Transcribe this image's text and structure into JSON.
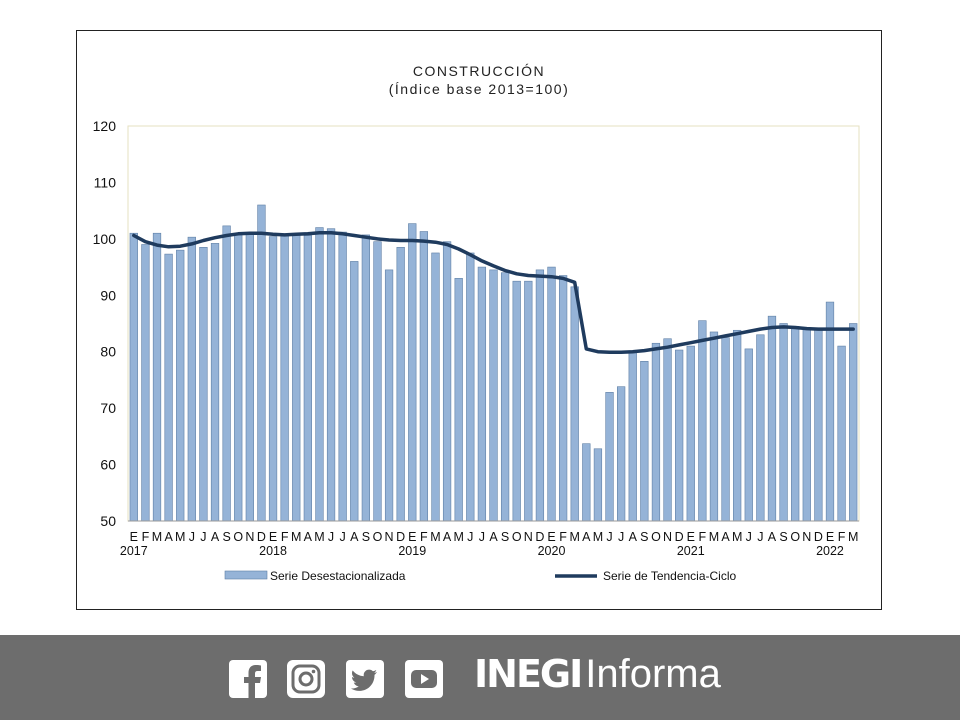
{
  "chart_data": {
    "type": "bar",
    "title": "CONSTRUCCIÓN",
    "subtitle": "(Índice base 2013=100)",
    "ylim": [
      50,
      120
    ],
    "yticks": [
      50,
      60,
      70,
      80,
      90,
      100,
      110,
      120
    ],
    "month_labels": [
      "E",
      "F",
      "M",
      "A",
      "M",
      "J",
      "J",
      "A",
      "S",
      "O",
      "N",
      "D",
      "E",
      "F",
      "M",
      "A",
      "M",
      "J",
      "J",
      "A",
      "S",
      "O",
      "N",
      "D",
      "E",
      "F",
      "M",
      "A",
      "M",
      "J",
      "J",
      "A",
      "S",
      "O",
      "N",
      "D",
      "E",
      "F",
      "M",
      "A",
      "M",
      "J",
      "J",
      "A",
      "S",
      "O",
      "N",
      "D",
      "E",
      "F",
      "M",
      "A",
      "M",
      "J",
      "J",
      "A",
      "S",
      "O",
      "N",
      "D",
      "E",
      "F",
      "M"
    ],
    "year_labels": [
      {
        "index": 0,
        "label": "2017"
      },
      {
        "index": 12,
        "label": "2018"
      },
      {
        "index": 24,
        "label": "2019"
      },
      {
        "index": 36,
        "label": "2020"
      },
      {
        "index": 48,
        "label": "2021"
      },
      {
        "index": 60,
        "label": "2022"
      }
    ],
    "series": [
      {
        "name": "Serie Desestacionalizada",
        "kind": "bar",
        "values": [
          101.0,
          99.0,
          101.0,
          97.3,
          98.0,
          100.3,
          98.5,
          99.2,
          102.3,
          100.8,
          100.8,
          106.0,
          100.4,
          100.5,
          100.8,
          100.6,
          102.0,
          101.8,
          101.2,
          96.0,
          100.7,
          99.5,
          94.5,
          98.5,
          102.7,
          101.3,
          97.5,
          99.5,
          93.0,
          97.5,
          95.0,
          94.5,
          94.0,
          92.5,
          92.5,
          94.5,
          95.0,
          93.5,
          91.5,
          63.7,
          62.8,
          72.8,
          73.8,
          79.8,
          78.3,
          81.5,
          82.3,
          80.3,
          81.0,
          85.5,
          83.5,
          82.5,
          83.8,
          80.5,
          83.0,
          86.3,
          85.0,
          84.5,
          84.0,
          84.0,
          88.8,
          81.0,
          85.0
        ]
      },
      {
        "name": "Serie de Tendencia-Ciclo",
        "kind": "line",
        "values": [
          100.6,
          99.5,
          98.9,
          98.6,
          98.7,
          99.1,
          99.7,
          100.2,
          100.6,
          100.9,
          101.0,
          101.0,
          100.8,
          100.7,
          100.8,
          100.9,
          101.1,
          101.1,
          100.9,
          100.6,
          100.3,
          100.0,
          99.8,
          99.7,
          99.7,
          99.6,
          99.4,
          99.0,
          98.2,
          97.2,
          96.1,
          95.2,
          94.4,
          93.8,
          93.5,
          93.4,
          93.3,
          93.0,
          92.3,
          80.5,
          80.0,
          79.9,
          79.9,
          80.0,
          80.2,
          80.5,
          80.8,
          81.2,
          81.6,
          82.0,
          82.4,
          82.8,
          83.2,
          83.6,
          84.0,
          84.3,
          84.4,
          84.3,
          84.1,
          84.0,
          84.0,
          84.0,
          84.0
        ]
      }
    ],
    "legend_placement": "bottom",
    "grid": false,
    "colors": {
      "bar_fill": "#95b3d7",
      "bar_stroke": "#5f7fa5",
      "line": "#1f3b5e",
      "plot_border": "#e6e0c2"
    }
  },
  "footer": {
    "icons": [
      "facebook-icon",
      "instagram-icon",
      "twitter-icon",
      "youtube-icon"
    ],
    "brand_bold": "INEGI",
    "brand_regular": "Informa",
    "bg_color": "#6d6d6d"
  }
}
